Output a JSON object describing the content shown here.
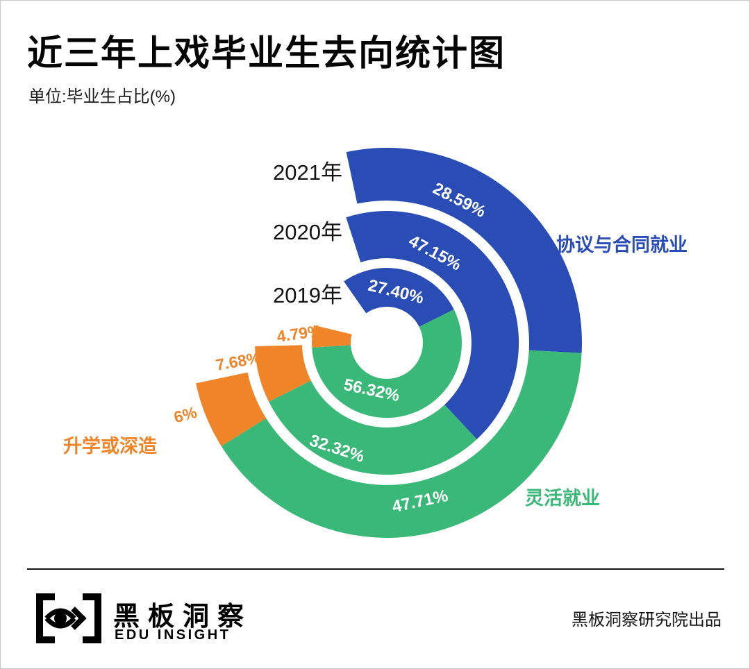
{
  "page": {
    "title": "近三年上戏毕业生去向统计图",
    "unit_label": "单位:毕业生占比(%)"
  },
  "chart_data": {
    "type": "radial-donut",
    "direction": "clockwise",
    "unit": "毕业生占比(%)",
    "legend_positions": {
      "协议与合同就业": "right",
      "灵活就业": "bottom-right",
      "升学或深造": "left"
    },
    "categories": [
      {
        "id": "contract-employment",
        "name": "协议与合同就业",
        "color": "#2a4cb5"
      },
      {
        "id": "flexible-employment",
        "name": "灵活就业",
        "color": "#3ab878"
      },
      {
        "id": "further-study",
        "name": "升学或深造",
        "color": "#f08429"
      }
    ],
    "rings": [
      {
        "year": "2019年",
        "year_key": "2019",
        "values": [
          27.4,
          56.32,
          4.79
        ],
        "labels": [
          "27.40%",
          "56.32%",
          "4.79%"
        ]
      },
      {
        "year": "2020年",
        "year_key": "2020",
        "values": [
          47.15,
          32.32,
          7.68
        ],
        "labels": [
          "47.15%",
          "32.32%",
          "7.68%"
        ]
      },
      {
        "year": "2021年",
        "year_key": "2021",
        "values": [
          28.59,
          47.71,
          6
        ],
        "labels": [
          "28.59%",
          "47.71%",
          "6%"
        ]
      }
    ]
  },
  "footer": {
    "brand_cn": "黑板洞察",
    "brand_en": "EDU INSIGHT",
    "credit": "黑板洞察研究院出品"
  }
}
